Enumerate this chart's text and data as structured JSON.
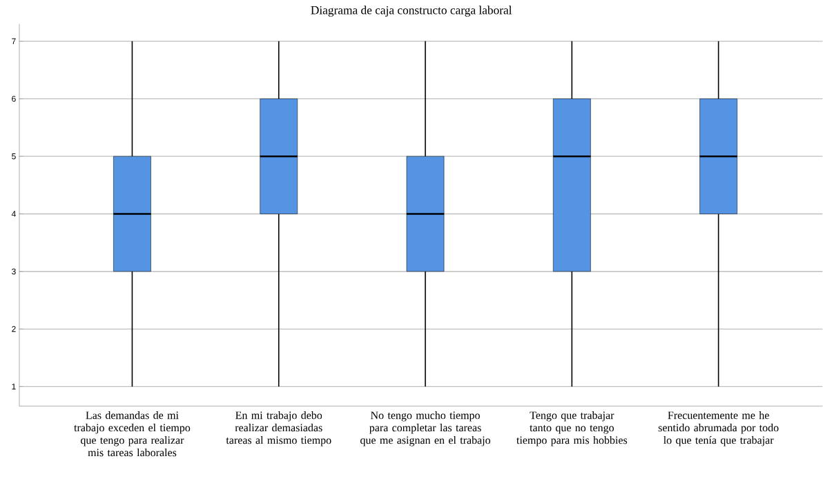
{
  "chart_data": {
    "type": "box",
    "title": "Diagrama de caja constructo carga laboral",
    "categories": [
      "Las demandas de mi trabajo exceden el tiempo que tengo para realizar mis tareas laborales",
      "En mi trabajo debo realizar demasiadas tareas al mismo tiempo",
      "No tengo mucho tiempo para completar las tareas que me asignan en el trabajo",
      "Tengo que trabajar tanto que no tengo tiempo para mis hobbies",
      "Frecuentemente me he sentido abrumada por todo lo que tenía que trabajar"
    ],
    "color": "#5494e3",
    "boxes": [
      {
        "low": 1,
        "q1": 3,
        "median": 4,
        "q3": 5,
        "high": 7
      },
      {
        "low": 1,
        "q1": 4,
        "median": 5,
        "q3": 6,
        "high": 7
      },
      {
        "low": 1,
        "q1": 3,
        "median": 4,
        "q3": 5,
        "high": 7
      },
      {
        "low": 1,
        "q1": 3,
        "median": 5,
        "q3": 6,
        "high": 7
      },
      {
        "low": 1,
        "q1": 4,
        "median": 5,
        "q3": 6,
        "high": 7
      }
    ],
    "ylim": [
      0.66,
      7.3
    ],
    "yticks": [
      1,
      2,
      3,
      4,
      5,
      6,
      7
    ],
    "grid": "y"
  }
}
